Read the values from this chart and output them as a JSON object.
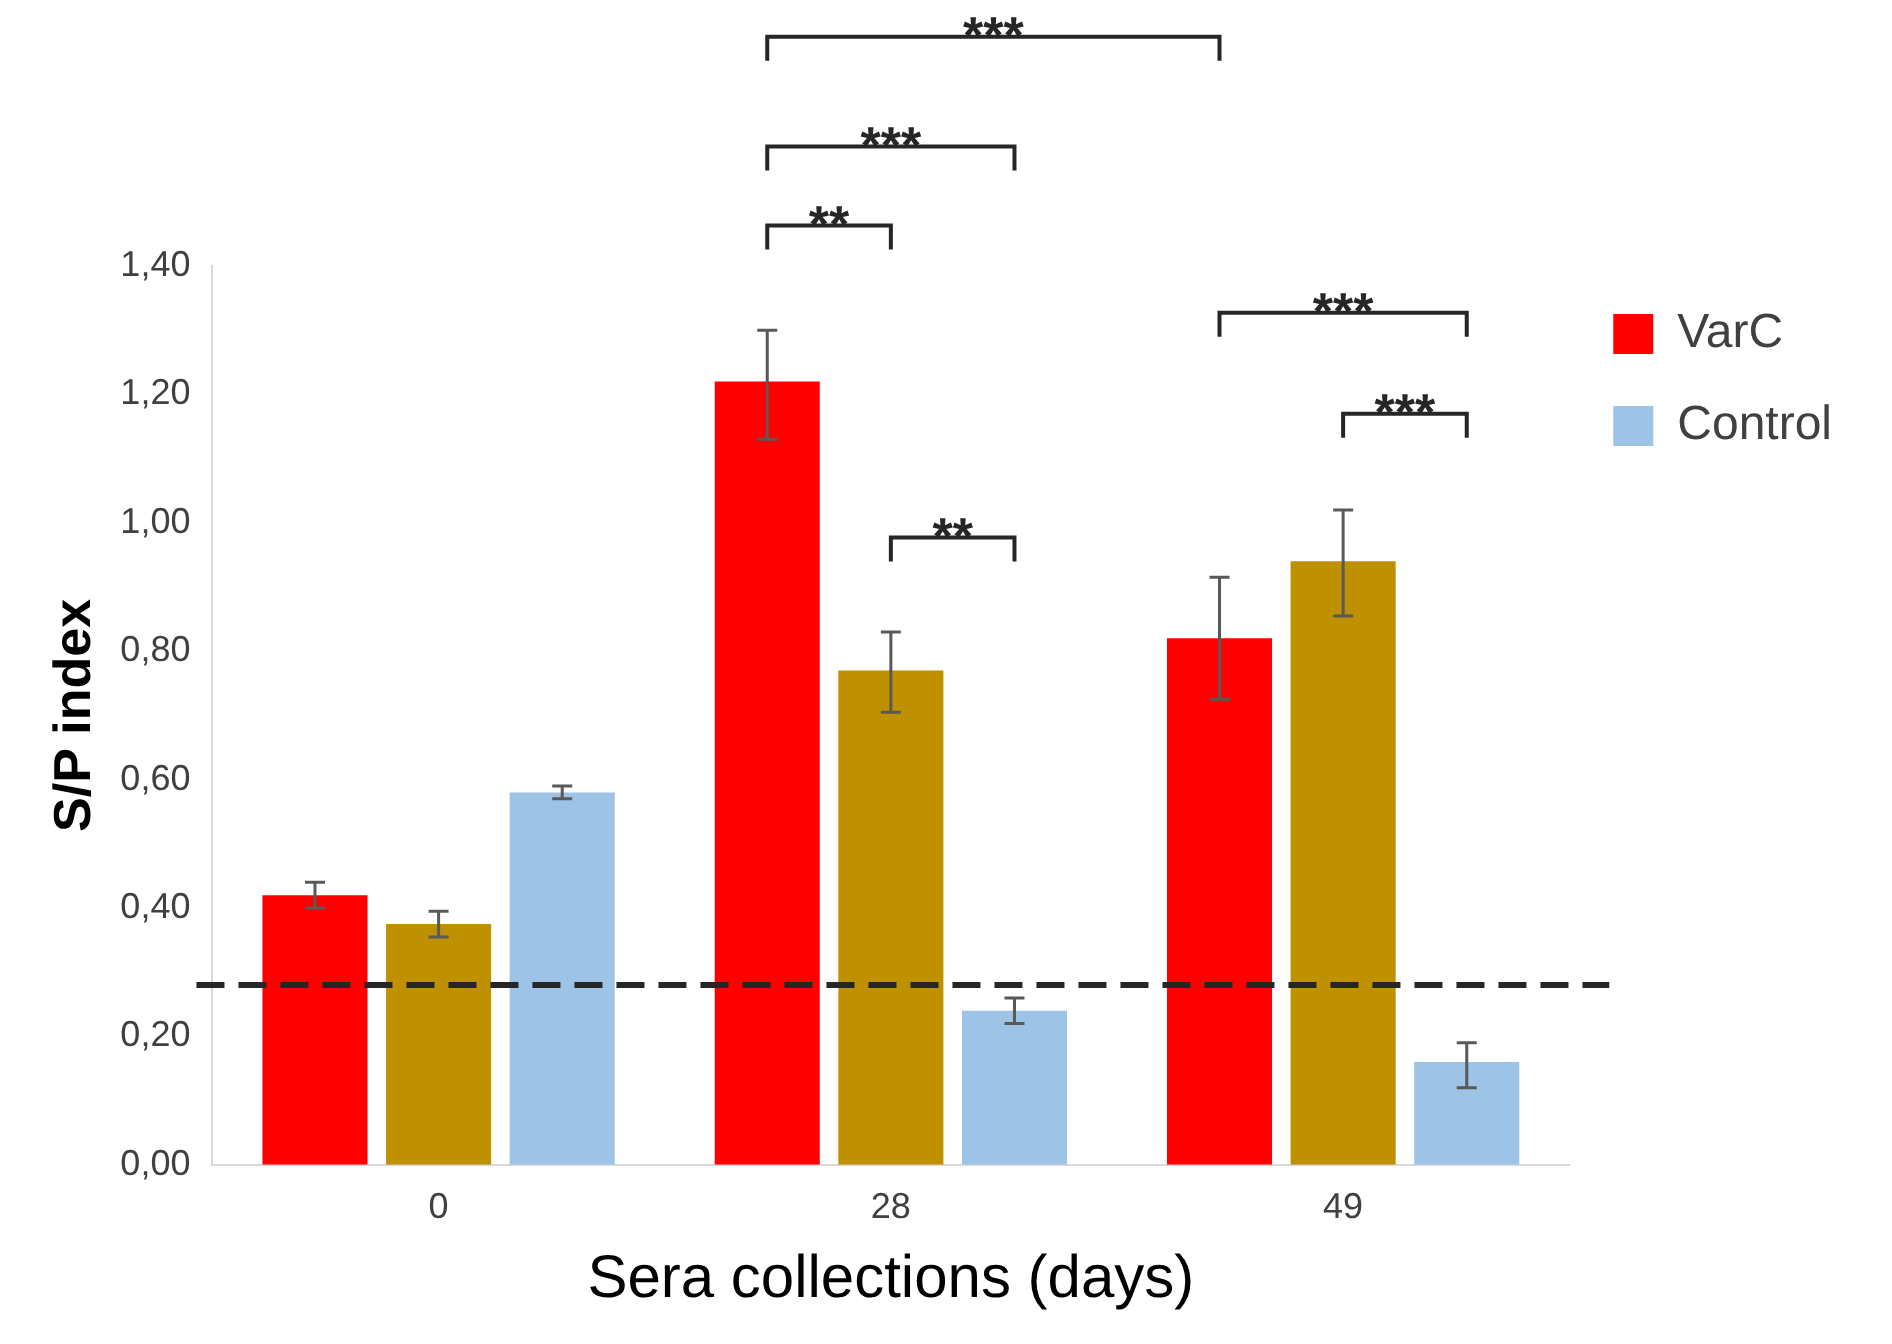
{
  "chart_data": {
    "type": "bar",
    "xlabel": "Sera collections (days)",
    "ylabel": "S/P index",
    "categories": [
      "0",
      "28",
      "49"
    ],
    "series": [
      {
        "name": "VarC",
        "color": "#ff0000",
        "values": [
          0.42,
          1.22,
          0.82
        ],
        "errors": [
          [
            0.4,
            0.44
          ],
          [
            1.13,
            1.3
          ],
          [
            0.725,
            0.915
          ]
        ]
      },
      {
        "color": "#bf9000",
        "values": [
          0.375,
          0.77,
          0.94
        ],
        "errors": [
          [
            0.355,
            0.395
          ],
          [
            0.705,
            0.83
          ],
          [
            0.855,
            1.02
          ]
        ]
      },
      {
        "name": "Control",
        "color": "#9dc3e6",
        "values": [
          0.58,
          0.24,
          0.16
        ],
        "errors": [
          [
            0.57,
            0.59
          ],
          [
            0.22,
            0.26
          ],
          [
            0.12,
            0.19
          ]
        ]
      }
    ],
    "ylim": [
      0,
      1.4
    ],
    "yticks": [
      {
        "value": 0,
        "label": "0,00"
      },
      {
        "value": 0.2,
        "label": "0,20"
      },
      {
        "value": 0.4,
        "label": "0,40"
      },
      {
        "value": 0.6,
        "label": "0,60"
      },
      {
        "value": 0.8,
        "label": "0,80"
      },
      {
        "value": 1.0,
        "label": "1,00"
      },
      {
        "value": 1.2,
        "label": "1,20"
      },
      {
        "value": 1.4,
        "label": "1,40"
      }
    ],
    "grid": false,
    "legend": "right",
    "ref_lines": [
      {
        "axis": "y",
        "value": 0.28,
        "color": "#262626",
        "line_style": "dashed"
      }
    ],
    "annotations": [
      "***",
      "***",
      "**",
      "**",
      "***",
      "***"
    ]
  }
}
